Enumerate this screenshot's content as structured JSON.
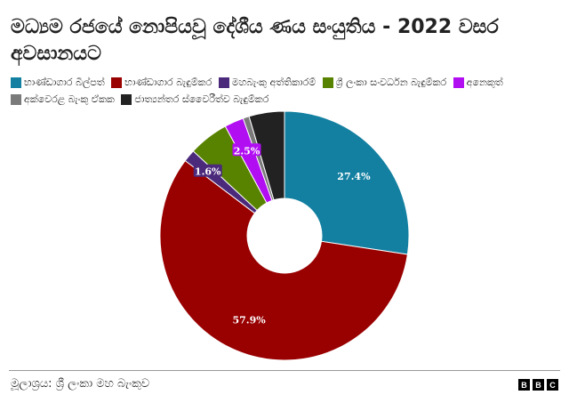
{
  "title": "මධ්‍යම රජයේ නොපියවූ දේශීය ණය සංයුතිය - 2022 වසර අවසානයට",
  "legend": [
    {
      "label": "භාණ්ඩාගාර බිල්පත්",
      "color": "#1380a1"
    },
    {
      "label": "භාණ්ඩාගාර බැඳුම්කර",
      "color": "#990000"
    },
    {
      "label": "මහබැංකු අත්තිකාරම්",
      "color": "#4b2a7b"
    },
    {
      "label": "ශ්‍රී ලංකා සංවර්ධන බැඳුම්කර",
      "color": "#588300"
    },
    {
      "label": "අනෙකුත්",
      "color": "#b10ef2"
    },
    {
      "label": "අක්වෙරළ බැංකු ඒකක",
      "color": "#7a7a7a"
    },
    {
      "label": "ජාත්‍යන්තර ස්වෛරීත්ව බැඳුම්කර",
      "color": "#222222"
    }
  ],
  "chart_data": {
    "type": "pie",
    "title": "මධ්‍යම රජයේ නොපියවූ දේශීය ණය සංයුතිය - 2022 වසර අවසානයට",
    "donut": true,
    "categories": [
      "භාණ්ඩාගාර බිල්පත්",
      "භාණ්ඩාගාර බැඳුම්කර",
      "මහබැංකු අත්තිකාරම්",
      "ශ්‍රී ලංකා සංවර්ධන බැඳුම්කර",
      "අනෙකුත්",
      "අක්වෙරළ බැංකු ඒකක",
      "ජාත්‍යන්තර ස්වෛරීත්ව බැඳුම්කර"
    ],
    "values": [
      27.4,
      57.9,
      1.6,
      5.2,
      2.5,
      0.8,
      4.6
    ],
    "colors": [
      "#1380a1",
      "#990000",
      "#4b2a7b",
      "#588300",
      "#b10ef2",
      "#7a7a7a",
      "#222222"
    ],
    "data_labels": [
      "27.4%",
      "57.9%",
      "1.6%",
      "",
      "2.5%",
      "",
      ""
    ],
    "legend_position": "top"
  },
  "source": "මූලාශ්‍රය: ශ්‍රී ලංකා මහ බැංකුව",
  "logo": [
    "B",
    "B",
    "C"
  ]
}
